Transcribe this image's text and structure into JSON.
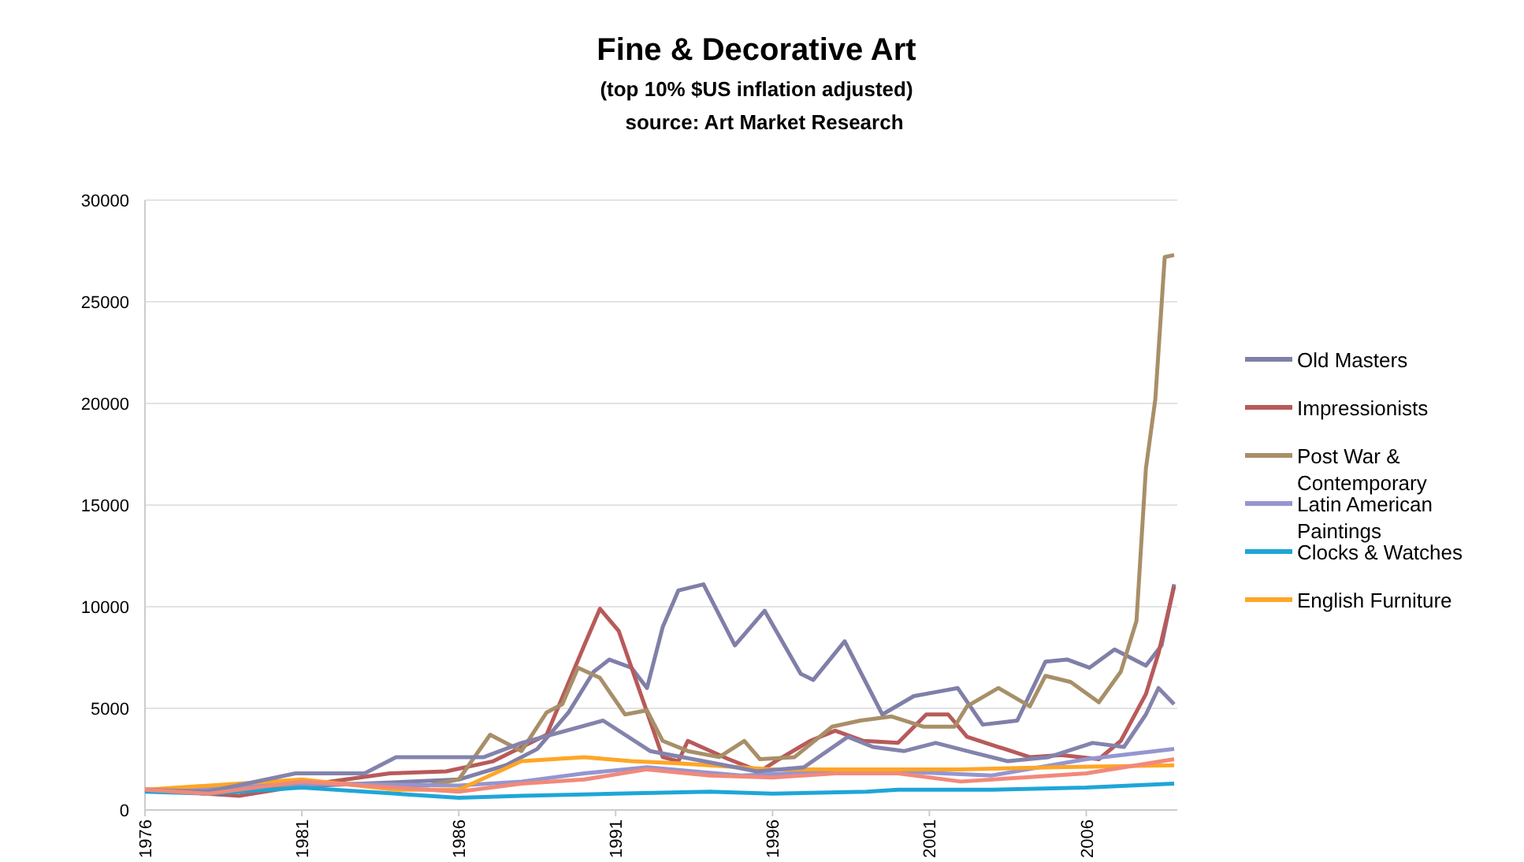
{
  "chart_data": {
    "type": "line",
    "title": "Fine & Decorative Art",
    "subtitle": "(top 10% $US inflation adjusted)",
    "annotations": [
      "source: Art Market Research"
    ],
    "xlim": [
      1976,
      2008.9
    ],
    "xticks": [
      1976,
      1981,
      1986,
      1991,
      1996,
      2001,
      2006
    ],
    "ylim": [
      0,
      30000
    ],
    "yticks": [
      0,
      5000,
      10000,
      15000,
      20000,
      25000,
      30000
    ],
    "grid": "y",
    "legend": "right",
    "line_style": "solid",
    "marker": "none",
    "series": [
      {
        "name": "Old Masters",
        "color": "#7f7fa8",
        "x": [
          1976,
          1978,
          1980,
          1983,
          1986,
          1987.5,
          1988.5,
          1989.5,
          1990.3,
          1990.8,
          1991.5,
          1992,
          1992.5,
          1993,
          1993.8,
          1994.8,
          1995.75,
          1996.9,
          1997.3,
          1998.3,
          1999.5,
          2000.5,
          2001.2,
          2001.9,
          2002.7,
          2003.8,
          2004.7,
          2005.4,
          2006.1,
          2006.9,
          2007.9,
          2008.4,
          2008.8
        ],
        "values": [
          1000,
          800,
          1100,
          1300,
          1500,
          2200,
          3000,
          4800,
          6800,
          7400,
          7000,
          6000,
          9000,
          10800,
          11100,
          8100,
          9800,
          6700,
          6400,
          8300,
          4700,
          5600,
          5800,
          6000,
          4200,
          4400,
          7300,
          7400,
          7000,
          7900,
          7100,
          8100,
          11100
        ]
      },
      {
        "name": "Impressionists",
        "color": "#b85a5a",
        "x": [
          1976,
          1979,
          1981,
          1983.8,
          1985.6,
          1987.1,
          1988.8,
          1990,
          1990.5,
          1991.1,
          1991.8,
          1992.5,
          1993,
          1993.3,
          1994.6,
          1995.6,
          1996.1,
          1997.2,
          1998,
          1998.9,
          2000,
          2000.9,
          2001.6,
          2002.2,
          2003.2,
          2004.2,
          2005.2,
          2006.4,
          2007.1,
          2007.9,
          2008.3,
          2008.8
        ],
        "values": [
          1000,
          700,
          1200,
          1800,
          1900,
          2400,
          3700,
          8100,
          9900,
          8800,
          5700,
          2600,
          2400,
          3400,
          2500,
          1900,
          2400,
          3400,
          3900,
          3400,
          3300,
          4700,
          4700,
          3600,
          3100,
          2600,
          2700,
          2500,
          3400,
          5700,
          7700,
          11000
        ]
      },
      {
        "name": "Post War & Contemporary",
        "color": "#a88f68",
        "x": [
          1976,
          1979,
          1982,
          1985,
          1986,
          1987,
          1988,
          1988.8,
          1989.3,
          1989.8,
          1990.5,
          1991.3,
          1992,
          1992.5,
          1993.3,
          1994.3,
          1995.1,
          1995.6,
          1996.7,
          1997.9,
          1998.8,
          1999.8,
          2000.8,
          2001.8,
          2002.2,
          2003.2,
          2004.2,
          2004.7,
          2005.5,
          2006.4,
          2007.1,
          2007.6,
          2007.9,
          2008.2,
          2008.5,
          2008.8
        ],
        "values": [
          1000,
          1100,
          1300,
          1200,
          1500,
          3700,
          2900,
          4800,
          5200,
          7000,
          6500,
          4700,
          4900,
          3400,
          2900,
          2600,
          3400,
          2500,
          2600,
          4100,
          4400,
          4600,
          4100,
          4100,
          5100,
          6000,
          5100,
          6600,
          6300,
          5300,
          6800,
          9300,
          16800,
          20200,
          27200,
          27300
        ]
      },
      {
        "name": "Latin American Paintings",
        "color": "#9595d0",
        "x": [
          1976,
          1981,
          1986,
          1988,
          1990,
          1992,
          1995,
          1998,
          2000,
          2003,
          2006,
          2008.8
        ],
        "values": [
          1000,
          1300,
          1200,
          1400,
          1800,
          2100,
          1700,
          1900,
          1900,
          1700,
          2500,
          3000
        ]
      },
      {
        "name": "Clocks & Watches",
        "color": "#1ea6d8",
        "x": [
          1976,
          1978,
          1981,
          1984,
          1986,
          1988,
          1991,
          1994,
          1996,
          1999,
          2000,
          2003,
          2006,
          2008.8
        ],
        "values": [
          900,
          800,
          1100,
          800,
          600,
          700,
          800,
          900,
          800,
          900,
          1000,
          1000,
          1100,
          1300
        ]
      },
      {
        "name": "English Furniture",
        "color": "#ffa626",
        "x": [
          1976,
          1979,
          1981,
          1984,
          1986,
          1988,
          1990,
          1991.5,
          1993,
          1996,
          2000,
          2002,
          2005,
          2008.8
        ],
        "values": [
          1000,
          1300,
          1500,
          1000,
          1000,
          2400,
          2600,
          2400,
          2300,
          2000,
          2000,
          2000,
          2100,
          2200
        ]
      },
      {
        "color": "#8383ad",
        "x": [
          1976,
          1978,
          1980.8,
          1983,
          1984,
          1986.8,
          1988,
          1990.6,
          1992.1,
          1993.8,
          1995.5,
          1997,
          1998.4,
          1999.2,
          2000.2,
          2001.2,
          2002.2,
          2003.5,
          2004.8,
          2006.2,
          2007.2,
          2007.9,
          2008.3,
          2008.8
        ],
        "values": [
          1000,
          900,
          1800,
          1800,
          2600,
          2600,
          3300,
          4400,
          2900,
          2400,
          1900,
          2100,
          3600,
          3100,
          2900,
          3300,
          2900,
          2400,
          2600,
          3300,
          3100,
          4700,
          6000,
          5200
        ]
      },
      {
        "color": "#f2897a",
        "x": [
          1976,
          1978,
          1981,
          1984,
          1986,
          1988,
          1990,
          1992,
          1994,
          1996,
          1998,
          2000,
          2002,
          2004,
          2006,
          2008.8
        ],
        "values": [
          1000,
          800,
          1400,
          1100,
          900,
          1300,
          1500,
          2000,
          1700,
          1600,
          1800,
          1800,
          1400,
          1600,
          1800,
          2500
        ]
      }
    ]
  }
}
